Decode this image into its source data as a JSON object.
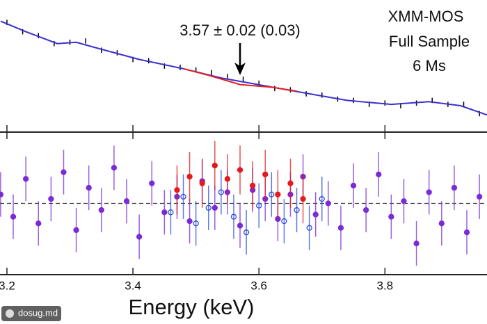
{
  "chart_data": [
    {
      "type": "line",
      "annotation": "3.57 ± 0.02 (0.03)",
      "annotation_x": 3.57,
      "labels": [
        "XMM-MOS",
        "Full Sample",
        "6 Ms"
      ],
      "xlim": [
        3.189,
        3.962
      ],
      "ylim": [
        0,
        1
      ],
      "xticks": [
        3.2,
        3.4,
        3.6,
        3.8
      ],
      "series": [
        {
          "color": "#3a2fd0",
          "x": [
            3.19,
            3.23,
            3.28,
            3.31,
            3.34,
            3.41,
            3.48,
            3.54,
            3.61,
            3.68,
            3.74,
            3.81,
            3.87,
            3.92,
            3.962
          ],
          "values": [
            0.84,
            0.76,
            0.67,
            0.68,
            0.64,
            0.55,
            0.48,
            0.41,
            0.35,
            0.29,
            0.24,
            0.21,
            0.23,
            0.2,
            0.13
          ]
        },
        {
          "color": "#e02020",
          "x": [
            3.48,
            3.52,
            3.57,
            3.62,
            3.66
          ],
          "values": [
            0.48,
            0.43,
            0.36,
            0.34,
            0.31
          ]
        },
        {
          "color": "#000000",
          "error": 0.02,
          "x": [
            3.2,
            3.225,
            3.25,
            3.275,
            3.3,
            3.325,
            3.35,
            3.375,
            3.4,
            3.425,
            3.45,
            3.475,
            3.5,
            3.525,
            3.55,
            3.575,
            3.6,
            3.625,
            3.65,
            3.675,
            3.7,
            3.725,
            3.75,
            3.775,
            3.8,
            3.825,
            3.85,
            3.875,
            3.9,
            3.925,
            3.95
          ],
          "values": [
            0.83,
            0.76,
            0.73,
            0.67,
            0.68,
            0.69,
            0.62,
            0.6,
            0.55,
            0.54,
            0.5,
            0.49,
            0.47,
            0.45,
            0.42,
            0.4,
            0.37,
            0.33,
            0.32,
            0.29,
            0.28,
            0.25,
            0.24,
            0.21,
            0.22,
            0.2,
            0.22,
            0.24,
            0.21,
            0.21,
            0.14
          ]
        }
      ]
    },
    {
      "type": "scatter",
      "xlabel": "Energy (keV)",
      "xlim": [
        3.189,
        3.962
      ],
      "ylim": [
        -3.2,
        3.2
      ],
      "xticks": [
        3.2,
        3.4,
        3.6,
        3.8
      ],
      "hline": 0,
      "series": [
        {
          "color": "#7a2bd6",
          "filled": true,
          "error": 1.0,
          "x": [
            3.19,
            3.21,
            3.23,
            3.25,
            3.27,
            3.29,
            3.31,
            3.33,
            3.35,
            3.37,
            3.39,
            3.41,
            3.43,
            3.45,
            3.47,
            3.49,
            3.51,
            3.53,
            3.55,
            3.57,
            3.59,
            3.61,
            3.63,
            3.65,
            3.67,
            3.69,
            3.71,
            3.73,
            3.75,
            3.77,
            3.79,
            3.81,
            3.83,
            3.85,
            3.87,
            3.89,
            3.91,
            3.93,
            3.95
          ],
          "values": [
            0.4,
            -0.6,
            1.1,
            -0.9,
            0.2,
            1.4,
            -1.2,
            0.7,
            -0.3,
            1.6,
            0.1,
            -1.5,
            0.9,
            -0.4,
            0.3,
            -0.8,
            1.0,
            -0.2,
            0.5,
            -1.0,
            0.6,
            0.2,
            -0.7,
            0.4,
            1.2,
            -0.5,
            0.0,
            -1.1,
            0.8,
            -0.3,
            1.3,
            -0.6,
            0.1,
            -1.8,
            0.5,
            -0.9,
            0.7,
            -1.3,
            0.3
          ]
        },
        {
          "color": "#e41a1c",
          "filled": true,
          "error": 1.1,
          "x": [
            3.47,
            3.49,
            3.51,
            3.53,
            3.55,
            3.57,
            3.59,
            3.61,
            3.63,
            3.65,
            3.67
          ],
          "values": [
            0.6,
            1.2,
            0.9,
            1.7,
            1.1,
            1.5,
            0.8,
            1.3,
            0.4,
            0.9,
            0.2
          ]
        },
        {
          "color": "#2a4be0",
          "filled": false,
          "error": 1.0,
          "x": [
            3.46,
            3.48,
            3.5,
            3.52,
            3.54,
            3.56,
            3.58,
            3.6,
            3.62,
            3.64,
            3.66,
            3.68,
            3.7
          ],
          "values": [
            -0.4,
            0.3,
            -0.9,
            -0.2,
            0.5,
            -0.6,
            -1.3,
            -0.1,
            0.4,
            -0.8,
            -0.3,
            -1.1,
            0.2
          ]
        }
      ]
    }
  ],
  "watermark": "dosug.md"
}
